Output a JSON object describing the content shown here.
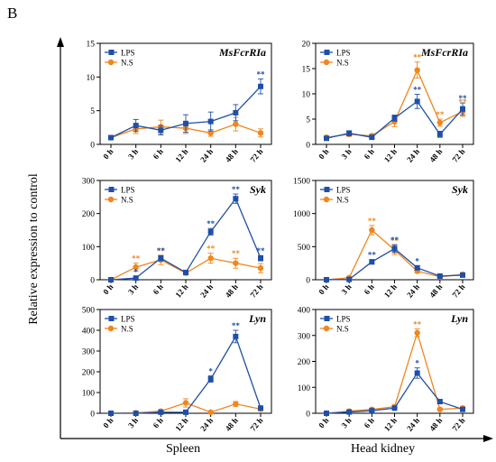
{
  "panel_letter": "B",
  "y_label": "Relative expression to control",
  "column_labels": [
    "Spleen",
    "Head kidney"
  ],
  "colors": {
    "LPS": "#1f4fa8",
    "N.S": "#f0861e"
  },
  "chart_data": [
    {
      "type": "line",
      "title": "MsFcrRIa",
      "tissue": "Spleen",
      "categories": [
        "0 h",
        "3 h",
        "6 h",
        "12 h",
        "24 h",
        "48 h",
        "72 h"
      ],
      "ylim": [
        0,
        15
      ],
      "yticks": [
        0,
        5,
        10,
        15
      ],
      "legend": "top-left",
      "grid": false,
      "series": [
        {
          "name": "LPS",
          "values": [
            1,
            2.8,
            2.1,
            3.1,
            3.4,
            4.7,
            8.6
          ],
          "errors": [
            0.1,
            0.9,
            0.7,
            1.3,
            1.4,
            1.2,
            1.1
          ],
          "sig": [
            "",
            "",
            "",
            "",
            "",
            "",
            "**"
          ]
        },
        {
          "name": "N.S",
          "values": [
            1,
            2.3,
            2.6,
            2.4,
            1.7,
            3.0,
            1.7
          ],
          "errors": [
            0.1,
            0.7,
            1.0,
            0.8,
            0.5,
            1.0,
            0.6
          ],
          "sig": [
            "",
            "",
            "",
            "",
            "",
            "",
            ""
          ]
        }
      ]
    },
    {
      "type": "line",
      "title": "MsFcrRIa",
      "tissue": "Head kidney",
      "categories": [
        "0 h",
        "3 h",
        "6 h",
        "12 h",
        "24 h",
        "48 h",
        "72 h"
      ],
      "ylim": [
        0,
        20
      ],
      "yticks": [
        0,
        5,
        10,
        15,
        20
      ],
      "legend": "top-left",
      "grid": false,
      "series": [
        {
          "name": "LPS",
          "values": [
            1.2,
            2.2,
            1.4,
            5.2,
            8.5,
            2.0,
            7.0
          ],
          "errors": [
            0.2,
            0.5,
            0.4,
            0.6,
            1.4,
            0.6,
            1.2
          ],
          "sig": [
            "",
            "",
            "",
            "",
            "**",
            "",
            "**"
          ]
        },
        {
          "name": "N.S",
          "values": [
            1.4,
            2.0,
            1.7,
            4.5,
            14.7,
            4.3,
            6.5
          ],
          "errors": [
            0.2,
            0.4,
            0.4,
            1.0,
            1.6,
            0.7,
            1.0
          ],
          "sig": [
            "",
            "",
            "",
            "",
            "**",
            "**",
            "**"
          ]
        }
      ]
    },
    {
      "type": "line",
      "title": "Syk",
      "tissue": "Spleen",
      "categories": [
        "0 h",
        "3 h",
        "6 h",
        "12 h",
        "24 h",
        "48 h",
        "72 h"
      ],
      "ylim": [
        0,
        300
      ],
      "yticks": [
        0,
        100,
        200,
        300
      ],
      "legend": "top-left",
      "grid": false,
      "series": [
        {
          "name": "LPS",
          "values": [
            0,
            5,
            65,
            22,
            145,
            245,
            65
          ],
          "errors": [
            1,
            4,
            8,
            6,
            10,
            14,
            8
          ],
          "sig": [
            "",
            "*",
            "**",
            "",
            "**",
            "**",
            "**"
          ]
        },
        {
          "name": "N.S",
          "values": [
            0,
            38,
            60,
            20,
            65,
            50,
            35
          ],
          "errors": [
            1,
            12,
            14,
            6,
            15,
            15,
            14
          ],
          "sig": [
            "",
            "**",
            "**",
            "",
            "**",
            "**",
            "*"
          ]
        }
      ]
    },
    {
      "type": "line",
      "title": "Syk",
      "tissue": "Head kidney",
      "categories": [
        "0 h",
        "3 h",
        "6 h",
        "12 h",
        "24 h",
        "48 h",
        "72 h"
      ],
      "ylim": [
        0,
        1500
      ],
      "yticks": [
        0,
        500,
        1000,
        1500
      ],
      "legend": "top-left",
      "grid": false,
      "series": [
        {
          "name": "LPS",
          "values": [
            0,
            5,
            270,
            470,
            180,
            55,
            70
          ],
          "errors": [
            2,
            4,
            35,
            60,
            30,
            12,
            15
          ],
          "sig": [
            "",
            "",
            "**",
            "**",
            "*",
            "",
            ""
          ]
        },
        {
          "name": "N.S",
          "values": [
            0,
            30,
            750,
            450,
            130,
            45,
            80
          ],
          "errors": [
            2,
            8,
            70,
            70,
            25,
            12,
            15
          ],
          "sig": [
            "",
            "",
            "**",
            "**",
            "",
            "",
            ""
          ]
        }
      ]
    },
    {
      "type": "line",
      "title": "Lyn",
      "tissue": "Spleen",
      "categories": [
        "0 h",
        "3 h",
        "6 h",
        "12 h",
        "24 h",
        "48 h",
        "72 h"
      ],
      "ylim": [
        0,
        500
      ],
      "yticks": [
        0,
        100,
        200,
        300,
        400,
        500
      ],
      "legend": "top-left",
      "grid": false,
      "series": [
        {
          "name": "LPS",
          "values": [
            0,
            0,
            5,
            5,
            165,
            370,
            25
          ],
          "errors": [
            1,
            2,
            4,
            4,
            15,
            30,
            8
          ],
          "sig": [
            "",
            "",
            "",
            "",
            "*",
            "**",
            ""
          ]
        },
        {
          "name": "N.S",
          "values": [
            0,
            2,
            10,
            50,
            5,
            45,
            20
          ],
          "errors": [
            1,
            2,
            5,
            20,
            4,
            12,
            8
          ],
          "sig": [
            "",
            "",
            "",
            "",
            "",
            "",
            ""
          ]
        }
      ]
    },
    {
      "type": "line",
      "title": "Lyn",
      "tissue": "Head kidney",
      "categories": [
        "0 h",
        "3 h",
        "6 h",
        "12 h",
        "24 h",
        "48 h",
        "72 h"
      ],
      "ylim": [
        0,
        400
      ],
      "yticks": [
        0,
        100,
        200,
        300,
        400
      ],
      "legend": "top-left",
      "grid": false,
      "series": [
        {
          "name": "LPS",
          "values": [
            0,
            5,
            10,
            20,
            155,
            45,
            15
          ],
          "errors": [
            1,
            3,
            4,
            6,
            20,
            8,
            5
          ],
          "sig": [
            "",
            "",
            "",
            "",
            "*",
            "",
            ""
          ]
        },
        {
          "name": "N.S",
          "values": [
            0,
            8,
            15,
            25,
            310,
            15,
            20
          ],
          "errors": [
            1,
            3,
            5,
            8,
            15,
            5,
            6
          ],
          "sig": [
            "",
            "",
            "",
            "",
            "**",
            "",
            ""
          ]
        }
      ]
    }
  ]
}
